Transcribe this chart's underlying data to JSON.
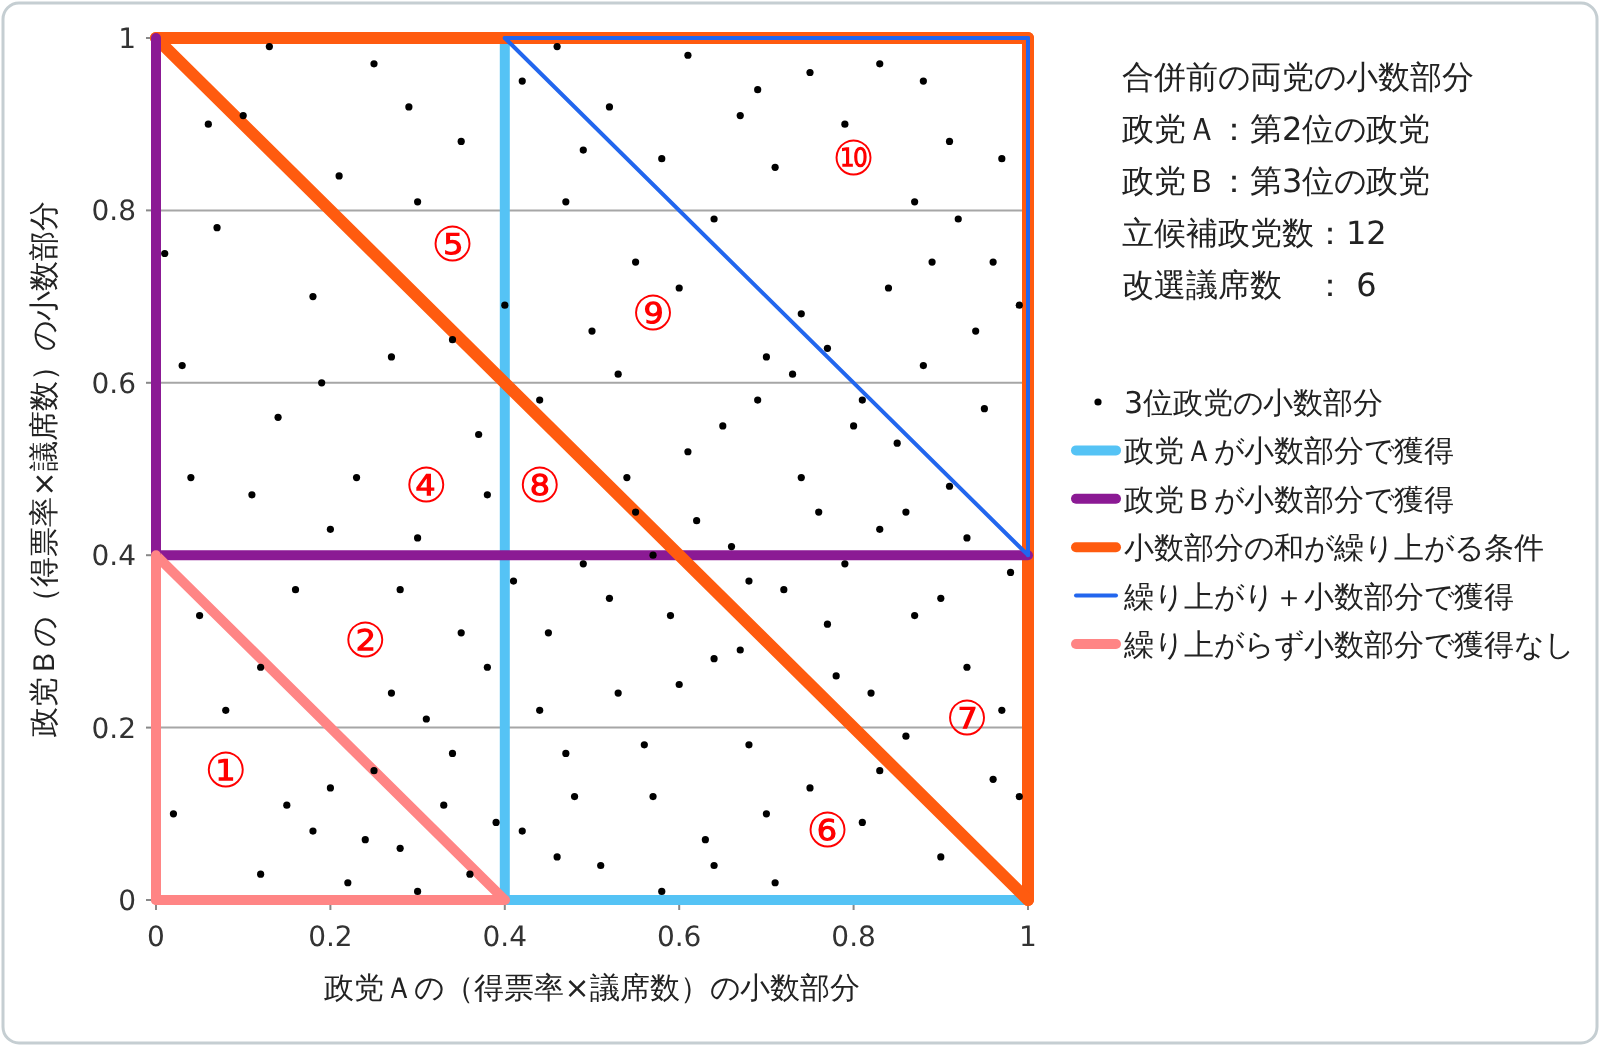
{
  "chart_data": {
    "type": "scatter",
    "xlabel": "政党Ａの（得票率×議席数）の小数部分",
    "ylabel": "政党Ｂの（得票率×議席数）の小数部分",
    "xlim": [
      0,
      1
    ],
    "ylim": [
      0,
      1
    ],
    "xticks": [
      0,
      0.2,
      0.4,
      0.6,
      0.8,
      1
    ],
    "yticks": [
      0,
      0.2,
      0.4,
      0.6,
      0.8,
      1
    ],
    "grid": "y",
    "legend": "right",
    "annotations": [
      "合併前の両党の小数部分",
      "政党Ａ：第2位の政党",
      "政党Ｂ：第3位の政党",
      "立候補政党数：12",
      "改選議席数　： 6",
      "①",
      "②",
      "④",
      "⑤",
      "⑥",
      "⑦",
      "⑧",
      "⑨",
      "⑩"
    ],
    "ref_lines": [
      {
        "axis": "x",
        "value": 0.4,
        "color": "#55c3f5"
      },
      {
        "axis": "y",
        "value": 1,
        "color": "#ff5b0f"
      },
      {
        "axis": "x",
        "value": 1,
        "color": "#ff5b0f"
      }
    ],
    "series": [
      {
        "name": "3位政党の小数部分",
        "type": "scatter",
        "marker": "circle",
        "color": "#000000",
        "x": [
          0.12,
          0.18,
          0.22,
          0.25,
          0.28,
          0.31,
          0.33,
          0.36,
          0.38,
          0.15,
          0.42,
          0.45,
          0.47,
          0.49,
          0.51,
          0.53,
          0.55,
          0.57,
          0.59,
          0.61,
          0.63,
          0.64,
          0.66,
          0.68,
          0.69,
          0.71,
          0.72,
          0.74,
          0.75,
          0.77,
          0.78,
          0.8,
          0.81,
          0.83,
          0.84,
          0.86,
          0.87,
          0.88,
          0.9,
          0.91,
          0.92,
          0.93,
          0.95,
          0.96,
          0.97,
          0.98,
          0.99,
          0.44,
          0.52,
          0.58,
          0.62,
          0.67,
          0.73,
          0.79,
          0.85,
          0.89,
          0.94,
          0.46,
          0.56,
          0.65,
          0.7,
          0.76,
          0.82,
          0.87,
          0.93,
          0.97,
          0.54,
          0.6,
          0.68,
          0.74,
          0.81,
          0.9,
          0.96,
          0.41,
          0.48,
          0.2,
          0.27,
          0.34,
          0.39,
          0.24,
          0.3,
          0.35,
          0.7,
          0.83,
          0.91,
          0.64,
          0.77,
          0.86,
          0.99,
          0.57,
          0.02,
          0.05,
          0.08,
          0.11,
          0.03,
          0.07,
          0.1,
          0.14,
          0.16,
          0.18,
          0.21,
          0.23,
          0.25,
          0.27,
          0.3,
          0.3,
          0.35,
          0.37,
          0.4,
          0.42,
          0.44,
          0.47,
          0.5,
          0.52,
          0.55,
          0.58,
          0.61,
          0.64,
          0.67,
          0.71,
          0.75,
          0.79,
          0.83,
          0.88,
          0.04,
          0.12,
          0.19,
          0.28,
          0.29,
          0.38,
          0.46,
          0.53,
          0.6,
          0.13,
          0.06,
          0.2,
          0.34,
          0.49,
          0.69,
          0.01
        ],
        "values": [
          0.03,
          0.08,
          0.02,
          0.15,
          0.06,
          0.21,
          0.11,
          0.03,
          0.27,
          0.11,
          0.08,
          0.31,
          0.17,
          0.39,
          0.04,
          0.24,
          0.45,
          0.12,
          0.33,
          0.52,
          0.07,
          0.28,
          0.41,
          0.18,
          0.58,
          0.02,
          0.36,
          0.49,
          0.13,
          0.64,
          0.26,
          0.55,
          0.09,
          0.43,
          0.71,
          0.19,
          0.33,
          0.62,
          0.05,
          0.48,
          0.79,
          0.27,
          0.57,
          0.14,
          0.86,
          0.38,
          0.69,
          0.22,
          0.35,
          0.01,
          0.44,
          0.29,
          0.61,
          0.39,
          0.53,
          0.74,
          0.66,
          0.05,
          0.18,
          0.55,
          0.1,
          0.45,
          0.24,
          0.81,
          0.42,
          0.22,
          0.49,
          0.25,
          0.37,
          0.68,
          0.58,
          0.35,
          0.74,
          0.37,
          0.12,
          0.13,
          0.24,
          0.17,
          0.09,
          0.07,
          0.01,
          0.31,
          0.63,
          0.15,
          0.88,
          0.04,
          0.32,
          0.45,
          0.12,
          0.4,
          0.1,
          0.33,
          0.22,
          0.47,
          0.62,
          0.78,
          0.91,
          0.56,
          0.36,
          0.7,
          0.84,
          0.49,
          0.97,
          0.63,
          0.42,
          0.81,
          0.88,
          0.54,
          0.69,
          0.95,
          0.58,
          0.81,
          0.66,
          0.92,
          0.74,
          0.86,
          0.98,
          0.79,
          0.91,
          0.85,
          0.96,
          0.9,
          0.97,
          0.95,
          0.49,
          0.27,
          0.6,
          0.36,
          0.92,
          0.47,
          0.99,
          0.61,
          0.71,
          0.99,
          0.9,
          0.43,
          0.65,
          0.87,
          0.94,
          0.75
        ]
      },
      {
        "name": "政党Ａが小数部分で獲得",
        "type": "line",
        "color": "#55c3f5",
        "x": [
          0.4,
          1
        ],
        "values": [
          0,
          0
        ]
      },
      {
        "name": "政党Ｂが小数部分で獲得",
        "type": "line",
        "color": "#8b1a94",
        "x": [
          0,
          1
        ],
        "values": [
          0.4,
          0.4
        ]
      },
      {
        "name": "小数部分の和が繰り上がる条件",
        "type": "line",
        "color": "#ff5b0f",
        "x": [
          0,
          1
        ],
        "values": [
          1,
          0
        ]
      },
      {
        "name": "繰り上がり＋小数部分で獲得",
        "type": "line",
        "color": "#2266ee",
        "x": [
          0.4,
          1
        ],
        "values": [
          1,
          0.4
        ]
      },
      {
        "name": "繰り上がらず小数部分で獲得なし",
        "type": "line",
        "color": "#ff8585",
        "x": [
          0,
          0.4
        ],
        "values": [
          0.4,
          0
        ]
      },
      {
        "type": "line",
        "color": "#8b1a94",
        "x": [
          0,
          0
        ],
        "values": [
          0.4,
          1
        ]
      },
      {
        "type": "line",
        "color": "#ff8585",
        "x": [
          0,
          0
        ],
        "values": [
          0,
          0.4
        ]
      },
      {
        "type": "line",
        "color": "#ff8585",
        "x": [
          0,
          0.4
        ],
        "values": [
          0,
          0
        ]
      },
      {
        "type": "line",
        "color": "#2266ee",
        "x": [
          0.4,
          1
        ],
        "values": [
          1,
          1
        ]
      },
      {
        "type": "line",
        "color": "#2266ee",
        "x": [
          1,
          1
        ],
        "values": [
          0.4,
          1
        ]
      }
    ]
  }
}
